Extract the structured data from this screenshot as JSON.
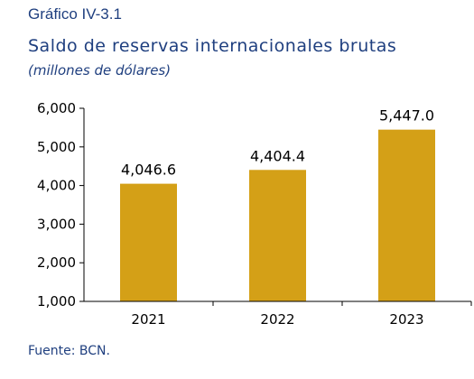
{
  "figure_label": "Gráfico IV-3.1",
  "title": "Saldo de reservas internacionales brutas",
  "subtitle": "(millones de dólares)",
  "source": "Fuente: BCN.",
  "colors": {
    "bar": "#D4A017",
    "text": "#1f3f7f",
    "axis": "#000000"
  },
  "chart_data": {
    "type": "bar",
    "categories": [
      "2021",
      "2022",
      "2023"
    ],
    "values": [
      4046.6,
      4404.4,
      5447.0
    ],
    "value_labels": [
      "4,046.6",
      "4,404.4",
      "5,447.0"
    ],
    "ylim": [
      1000,
      6000
    ],
    "yticks": [
      1000,
      2000,
      3000,
      4000,
      5000,
      6000
    ],
    "ytick_labels": [
      "1,000",
      "2,000",
      "3,000",
      "4,000",
      "5,000",
      "6,000"
    ],
    "xlabel": "",
    "ylabel": "",
    "grid": false
  }
}
